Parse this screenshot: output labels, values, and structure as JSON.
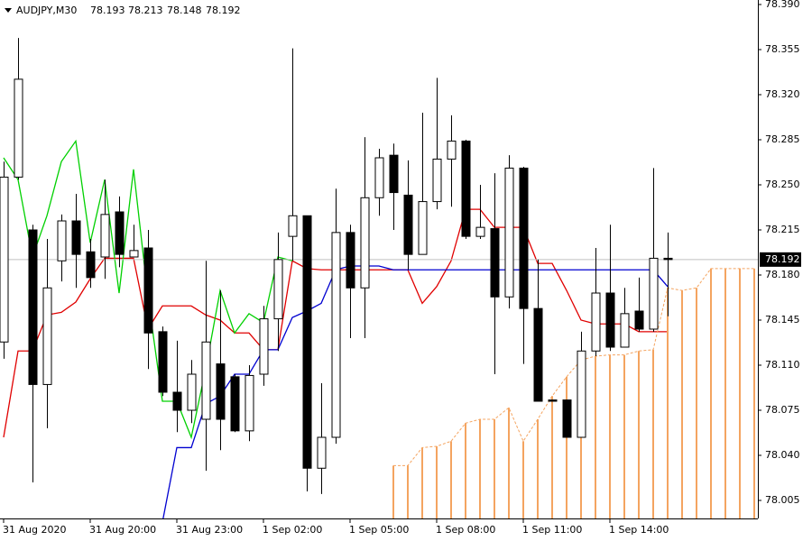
{
  "chart_data": {
    "type": "candlestick",
    "symbol": "AUDJPY,M30",
    "x": [
      "31 Aug 2020",
      null,
      null,
      null,
      null,
      null,
      "31 Aug 20:00",
      null,
      null,
      null,
      null,
      null,
      "31 Aug 23:00",
      null,
      null,
      null,
      null,
      null,
      "1 Sep 02:00",
      null,
      null,
      null,
      null,
      null,
      "1 Sep 05:00",
      null,
      null,
      null,
      null,
      null,
      "1 Sep 08:00",
      null,
      null,
      null,
      null,
      null,
      "1 Sep 11:00",
      null,
      null,
      null,
      null,
      null,
      "1 Sep 14:00",
      null,
      null,
      null,
      null,
      null,
      null,
      null,
      null,
      null,
      null
    ],
    "open": [
      78.128,
      78.256,
      78.215,
      78.095,
      78.191,
      78.222,
      78.198,
      78.194,
      78.229,
      78.194,
      78.201,
      78.136,
      78.089,
      78.075,
      78.068,
      78.111,
      78.101,
      78.059,
      78.103,
      78.146,
      78.21,
      78.226,
      78.03,
      78.054,
      78.213,
      78.17,
      78.24,
      78.273,
      78.242,
      78.196,
      78.237,
      78.27,
      78.284,
      78.21,
      78.216,
      78.163,
      78.263,
      78.154,
      78.083,
      78.083,
      78.054,
      78.121,
      78.166,
      78.124,
      78.152,
      78.138,
      78.193,
      null,
      null,
      null,
      null,
      null,
      null
    ],
    "high": [
      78.268,
      78.364,
      78.219,
      78.208,
      78.227,
      78.243,
      78.208,
      78.254,
      78.241,
      78.219,
      78.215,
      78.14,
      78.129,
      78.114,
      78.191,
      78.168,
      78.103,
      78.11,
      78.156,
      78.213,
      78.356,
      78.226,
      78.096,
      78.247,
      78.219,
      78.287,
      78.278,
      78.282,
      78.269,
      78.306,
      78.333,
      78.304,
      78.285,
      78.25,
      78.259,
      78.273,
      78.264,
      78.192,
      78.083,
      78.083,
      78.136,
      78.201,
      78.219,
      78.17,
      78.178,
      78.263,
      78.213,
      null,
      null,
      null,
      null,
      null,
      null
    ],
    "low": [
      78.115,
      78.254,
      78.019,
      78.061,
      78.175,
      78.17,
      78.17,
      78.177,
      78.186,
      78.194,
      78.107,
      78.086,
      78.058,
      78.065,
      78.028,
      78.044,
      78.058,
      78.051,
      78.094,
      78.121,
      78.191,
      78.012,
      78.01,
      78.049,
      78.131,
      78.131,
      78.226,
      78.215,
      78.184,
      78.196,
      78.231,
      78.233,
      78.208,
      78.208,
      78.103,
      78.154,
      78.111,
      78.082,
      78.082,
      78.054,
      78.054,
      78.117,
      78.121,
      78.125,
      78.136,
      78.136,
      78.148,
      null,
      null,
      null,
      null,
      null,
      null
    ],
    "close": [
      78.256,
      78.332,
      78.095,
      78.17,
      78.222,
      78.196,
      78.178,
      78.227,
      78.196,
      78.199,
      78.135,
      78.089,
      78.075,
      78.103,
      78.128,
      78.068,
      78.059,
      78.102,
      78.146,
      78.192,
      78.226,
      78.03,
      78.054,
      78.213,
      78.17,
      78.24,
      78.271,
      78.244,
      78.196,
      78.237,
      78.27,
      78.284,
      78.21,
      78.217,
      78.163,
      78.263,
      78.154,
      78.082,
      78.082,
      78.054,
      78.121,
      78.166,
      78.124,
      78.15,
      78.138,
      78.193,
      78.192,
      null,
      null,
      null,
      null,
      null,
      null
    ],
    "bull_color": "#ffffff",
    "bear_color": "#000000",
    "indicators": [
      {
        "style": "line",
        "color": "#e00000",
        "values": [
          78.054,
          78.121,
          78.121,
          78.149,
          78.151,
          78.159,
          78.177,
          78.193,
          78.193,
          78.193,
          78.138,
          78.156,
          78.156,
          78.156,
          78.149,
          78.145,
          78.135,
          78.135,
          78.122,
          78.122,
          78.191,
          78.185,
          78.184,
          78.184,
          78.184,
          78.184,
          78.184,
          78.184,
          78.184,
          78.158,
          78.171,
          78.191,
          78.231,
          78.231,
          78.217,
          78.217,
          78.217,
          78.189,
          78.189,
          78.168,
          78.145,
          78.142,
          78.142,
          78.142,
          78.136,
          78.136,
          78.136,
          null,
          null,
          null,
          null,
          null,
          null
        ]
      },
      {
        "style": "line",
        "color": "#0000d0",
        "values": [
          null,
          null,
          null,
          null,
          null,
          null,
          null,
          null,
          null,
          null,
          null,
          77.988,
          78.046,
          78.046,
          78.08,
          78.086,
          78.103,
          78.103,
          78.122,
          78.122,
          78.147,
          78.152,
          78.158,
          78.184,
          78.187,
          78.187,
          78.187,
          78.184,
          78.184,
          78.184,
          78.184,
          78.184,
          78.184,
          78.184,
          78.184,
          78.184,
          78.184,
          78.184,
          78.184,
          78.184,
          78.184,
          78.184,
          78.184,
          78.184,
          78.184,
          78.184,
          78.171,
          null,
          null,
          null,
          null,
          null,
          null
        ]
      },
      {
        "style": "line",
        "color": "#00d000",
        "values": [
          78.271,
          78.254,
          78.194,
          78.226,
          78.268,
          78.284,
          78.205,
          78.254,
          78.166,
          78.262,
          78.163,
          78.082,
          78.082,
          78.054,
          78.107,
          78.168,
          78.135,
          78.15,
          78.143,
          78.194,
          78.191,
          null,
          null,
          null,
          null,
          null,
          null,
          null,
          null,
          null,
          null,
          null,
          null,
          null,
          null,
          null,
          null,
          null,
          null,
          null,
          null,
          null,
          null,
          null,
          null,
          null,
          null,
          null,
          null,
          null,
          null,
          null,
          null
        ]
      },
      {
        "style": "cloud",
        "color": "#f4a460",
        "values": [
          null,
          null,
          null,
          null,
          null,
          null,
          null,
          null,
          null,
          null,
          null,
          null,
          null,
          null,
          null,
          null,
          null,
          null,
          null,
          null,
          null,
          null,
          null,
          null,
          null,
          null,
          null,
          78.032,
          78.032,
          78.046,
          78.047,
          78.051,
          78.065,
          78.068,
          78.068,
          78.077,
          78.051,
          78.068,
          78.086,
          78.101,
          78.114,
          78.117,
          78.118,
          78.118,
          78.121,
          78.122,
          78.17,
          78.168,
          78.17,
          78.185,
          78.185,
          78.185,
          78.185
        ]
      }
    ],
    "ylim": [
      77.991,
      78.3935
    ],
    "yticks": [
      {
        "value": 78.39,
        "label": "78.390"
      },
      {
        "value": 78.355,
        "label": "78.355"
      },
      {
        "value": 78.32,
        "label": "78.320"
      },
      {
        "value": 78.285,
        "label": "78.285"
      },
      {
        "value": 78.25,
        "label": "78.250"
      },
      {
        "value": 78.215,
        "label": "78.215"
      },
      {
        "value": 78.18,
        "label": "78.180"
      },
      {
        "value": 78.145,
        "label": "78.145"
      },
      {
        "value": 78.11,
        "label": "78.110"
      },
      {
        "value": 78.075,
        "label": "78.075"
      },
      {
        "value": 78.04,
        "label": "78.040"
      },
      {
        "value": 78.005,
        "label": "78.005"
      }
    ],
    "grid": false
  }
}
